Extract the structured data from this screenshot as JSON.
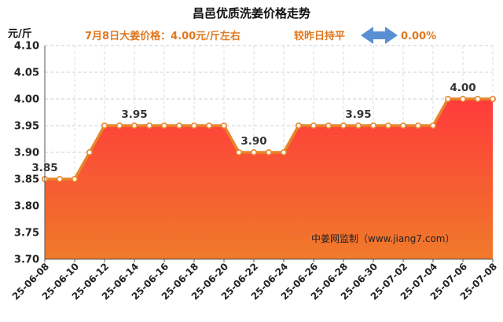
{
  "header": {
    "title": "昌邑优质洗姜价格走势",
    "price_note": "7月8日大姜价格：4.00元/斤左右",
    "compare_label": "较昨日持平",
    "compare_value": "0.00%"
  },
  "watermark": "中姜网监制（www.jiang7.com）",
  "colors": {
    "line": "#e8842a",
    "fill_top": "#ff3b3b",
    "fill_bottom": "#f07a2a",
    "accent_text": "#e07820",
    "arrow": "#5b8fd4"
  },
  "chart_data": {
    "type": "area",
    "ylabel": "元/斤",
    "ylim": [
      3.7,
      4.1
    ],
    "yticks": [
      "3.70",
      "3.75",
      "3.80",
      "3.85",
      "3.90",
      "3.95",
      "4.00",
      "4.05",
      "4.10"
    ],
    "grid": true,
    "x": [
      "25-06-08",
      "25-06-09",
      "25-06-10",
      "25-06-11",
      "25-06-12",
      "25-06-13",
      "25-06-14",
      "25-06-15",
      "25-06-16",
      "25-06-17",
      "25-06-18",
      "25-06-19",
      "25-06-20",
      "25-06-21",
      "25-06-22",
      "25-06-23",
      "25-06-24",
      "25-06-25",
      "25-06-26",
      "25-06-27",
      "25-06-28",
      "25-06-29",
      "25-06-30",
      "25-07-01",
      "25-07-02",
      "25-07-03",
      "25-07-04",
      "25-07-05",
      "25-07-06",
      "25-07-07",
      "25-07-08"
    ],
    "xtick_labels": [
      "25-06-08",
      "25-06-10",
      "25-06-12",
      "25-06-14",
      "25-06-16",
      "25-06-18",
      "25-06-20",
      "25-06-22",
      "25-06-24",
      "25-06-26",
      "25-06-28",
      "25-06-30",
      "25-07-02",
      "25-07-04",
      "25-07-06",
      "25-07-08"
    ],
    "values": [
      3.85,
      3.85,
      3.85,
      3.9,
      3.95,
      3.95,
      3.95,
      3.95,
      3.95,
      3.95,
      3.95,
      3.95,
      3.95,
      3.9,
      3.9,
      3.9,
      3.9,
      3.95,
      3.95,
      3.95,
      3.95,
      3.95,
      3.95,
      3.95,
      3.95,
      3.95,
      3.95,
      4.0,
      4.0,
      4.0,
      4.0
    ],
    "data_labels": [
      {
        "x": "25-06-08",
        "text": "3.85"
      },
      {
        "x": "25-06-14",
        "text": "3.95"
      },
      {
        "x": "25-06-22",
        "text": "3.90"
      },
      {
        "x": "25-06-29",
        "text": "3.95"
      },
      {
        "x": "25-07-06",
        "text": "4.00"
      }
    ]
  }
}
